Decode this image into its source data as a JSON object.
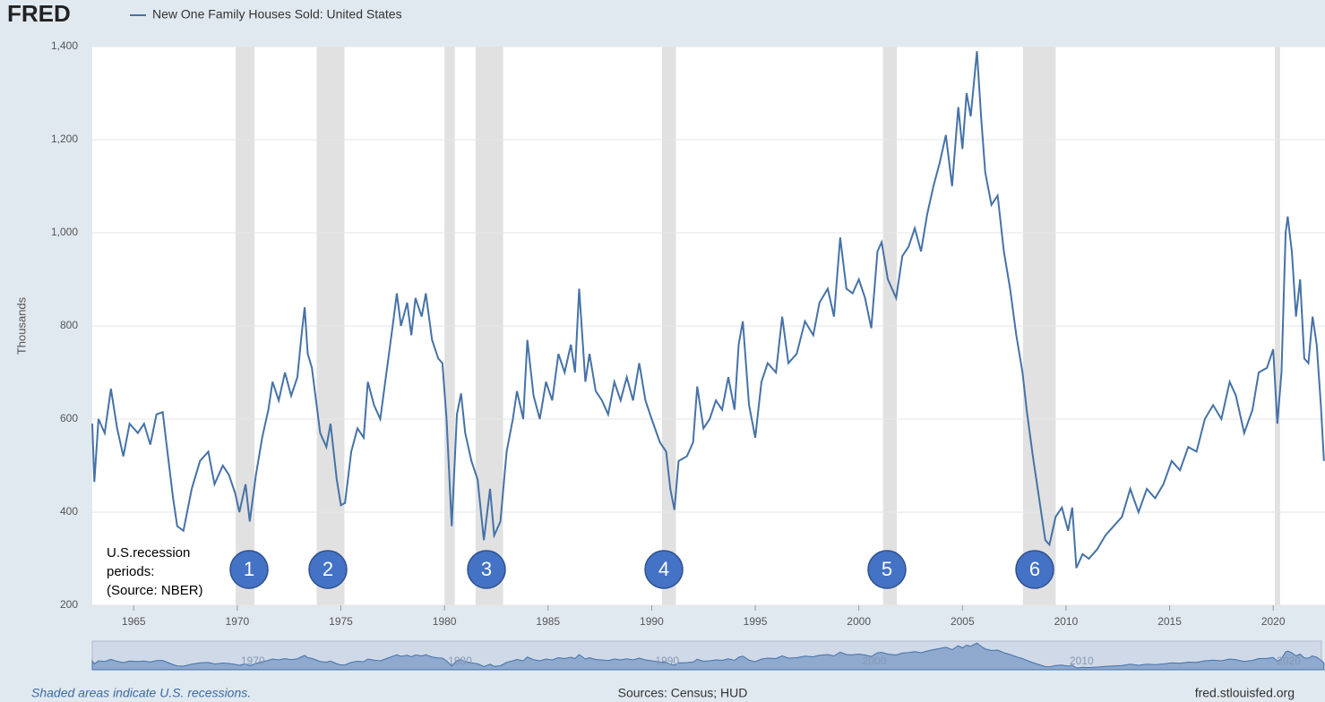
{
  "chart_data": {
    "type": "line",
    "logo": "FRED",
    "title": "New One Family Houses Sold: United States",
    "y_label": "Thousands",
    "color": "#4572a7",
    "recession_color": "#e1e1e1",
    "grid": true,
    "xlim": [
      1963,
      2022.5
    ],
    "xticks": [
      1965,
      1970,
      1975,
      1980,
      1985,
      1990,
      1995,
      2000,
      2005,
      2010,
      2015,
      2020
    ],
    "ylim": [
      200,
      1400
    ],
    "yticks": [
      200,
      400,
      600,
      800,
      {
        "value": 1000,
        "label": "1,000"
      },
      {
        "value": 1200,
        "label": "1,200"
      },
      {
        "value": 1400,
        "label": "1,400"
      }
    ],
    "recessions": [
      [
        1969.92,
        1970.83
      ],
      [
        1973.83,
        1975.17
      ],
      [
        1980.0,
        1980.5
      ],
      [
        1981.5,
        1982.83
      ],
      [
        1990.5,
        1991.17
      ],
      [
        2001.17,
        2001.83
      ],
      [
        2007.92,
        2009.5
      ],
      [
        2020.08,
        2020.33
      ]
    ],
    "annotation": [
      "U.S.recession",
      "periods:",
      "(Source: NBER)"
    ],
    "markers": [
      "1",
      "2",
      "3",
      "4",
      "5",
      "6"
    ],
    "navigator_ticks": [
      1970,
      1980,
      1990,
      2000,
      2010,
      2020
    ],
    "footer_left": "Shaded areas indicate U.S. recessions.",
    "footer_center": "Sources: Census; HUD",
    "footer_right": "fred.stlouisfed.org",
    "x": [
      1963.0,
      1963.1,
      1963.3,
      1963.6,
      1963.9,
      1964.2,
      1964.5,
      1964.8,
      1965.2,
      1965.5,
      1965.8,
      1966.1,
      1966.4,
      1966.6,
      1966.9,
      1967.1,
      1967.4,
      1967.8,
      1968.2,
      1968.6,
      1968.9,
      1969.3,
      1969.6,
      1969.9,
      1970.1,
      1970.4,
      1970.6,
      1970.9,
      1971.2,
      1971.5,
      1971.7,
      1972.0,
      1972.3,
      1972.6,
      1972.9,
      1973.1,
      1973.25,
      1973.4,
      1973.6,
      1973.8,
      1974.0,
      1974.3,
      1974.5,
      1974.8,
      1975.0,
      1975.2,
      1975.5,
      1975.8,
      1976.1,
      1976.3,
      1976.6,
      1976.9,
      1977.2,
      1977.5,
      1977.7,
      1977.9,
      1978.2,
      1978.4,
      1978.6,
      1978.9,
      1979.1,
      1979.4,
      1979.7,
      1979.9,
      1980.1,
      1980.35,
      1980.6,
      1980.8,
      1981.0,
      1981.3,
      1981.6,
      1981.9,
      1982.2,
      1982.4,
      1982.7,
      1983.0,
      1983.3,
      1983.5,
      1983.8,
      1984.0,
      1984.3,
      1984.6,
      1984.9,
      1985.2,
      1985.5,
      1985.8,
      1986.1,
      1986.3,
      1986.5,
      1986.8,
      1987.0,
      1987.3,
      1987.6,
      1987.9,
      1988.2,
      1988.5,
      1988.8,
      1989.1,
      1989.4,
      1989.7,
      1990.0,
      1990.4,
      1990.7,
      1990.9,
      1991.1,
      1991.3,
      1991.7,
      1992.0,
      1992.2,
      1992.5,
      1992.8,
      1993.1,
      1993.4,
      1993.7,
      1994.0,
      1994.2,
      1994.4,
      1994.7,
      1995.0,
      1995.3,
      1995.6,
      1996.0,
      1996.3,
      1996.6,
      1997.0,
      1997.4,
      1997.8,
      1998.1,
      1998.5,
      1998.8,
      1999.1,
      1999.4,
      1999.7,
      2000.0,
      2000.3,
      2000.6,
      2000.9,
      2001.1,
      2001.4,
      2001.8,
      2002.1,
      2002.4,
      2002.7,
      2003.0,
      2003.3,
      2003.6,
      2003.9,
      2004.2,
      2004.5,
      2004.8,
      2005.0,
      2005.2,
      2005.4,
      2005.7,
      2005.9,
      2006.1,
      2006.4,
      2006.7,
      2007.0,
      2007.3,
      2007.6,
      2007.9,
      2008.1,
      2008.4,
      2008.8,
      2009.0,
      2009.2,
      2009.5,
      2009.8,
      2010.1,
      2010.3,
      2010.5,
      2010.8,
      2011.1,
      2011.5,
      2011.9,
      2012.3,
      2012.7,
      2013.1,
      2013.5,
      2013.9,
      2014.3,
      2014.7,
      2015.1,
      2015.5,
      2015.9,
      2016.3,
      2016.7,
      2017.1,
      2017.5,
      2017.9,
      2018.2,
      2018.6,
      2019.0,
      2019.3,
      2019.7,
      2020.0,
      2020.2,
      2020.4,
      2020.6,
      2020.7,
      2020.9,
      2021.1,
      2021.3,
      2021.5,
      2021.7,
      2021.9,
      2022.1,
      2022.3,
      2022.45
    ],
    "values": [
      590,
      465,
      600,
      570,
      665,
      580,
      520,
      590,
      570,
      590,
      545,
      610,
      615,
      540,
      430,
      370,
      360,
      450,
      510,
      530,
      460,
      500,
      480,
      440,
      400,
      460,
      380,
      480,
      560,
      620,
      680,
      640,
      700,
      650,
      690,
      780,
      840,
      740,
      710,
      640,
      570,
      540,
      590,
      470,
      415,
      420,
      530,
      580,
      560,
      680,
      630,
      600,
      700,
      800,
      870,
      800,
      850,
      780,
      860,
      820,
      870,
      770,
      730,
      720,
      600,
      370,
      610,
      655,
      570,
      510,
      470,
      340,
      450,
      350,
      380,
      530,
      600,
      660,
      600,
      770,
      650,
      600,
      680,
      640,
      740,
      700,
      760,
      700,
      880,
      680,
      740,
      660,
      640,
      610,
      680,
      640,
      690,
      640,
      720,
      640,
      600,
      550,
      530,
      450,
      405,
      510,
      520,
      550,
      670,
      580,
      600,
      640,
      620,
      690,
      620,
      760,
      810,
      630,
      560,
      680,
      720,
      700,
      820,
      720,
      740,
      810,
      780,
      850,
      880,
      820,
      990,
      880,
      870,
      900,
      860,
      795,
      960,
      980,
      900,
      860,
      950,
      970,
      1010,
      960,
      1040,
      1100,
      1150,
      1210,
      1100,
      1270,
      1180,
      1300,
      1250,
      1390,
      1250,
      1130,
      1060,
      1080,
      960,
      880,
      780,
      700,
      620,
      520,
      400,
      340,
      330,
      390,
      410,
      360,
      410,
      280,
      310,
      300,
      320,
      350,
      370,
      390,
      450,
      400,
      450,
      430,
      460,
      510,
      490,
      540,
      530,
      600,
      630,
      600,
      680,
      650,
      570,
      620,
      700,
      710,
      750,
      590,
      700,
      1000,
      1035,
      960,
      820,
      900,
      730,
      720,
      820,
      760,
      630,
      510
    ]
  }
}
